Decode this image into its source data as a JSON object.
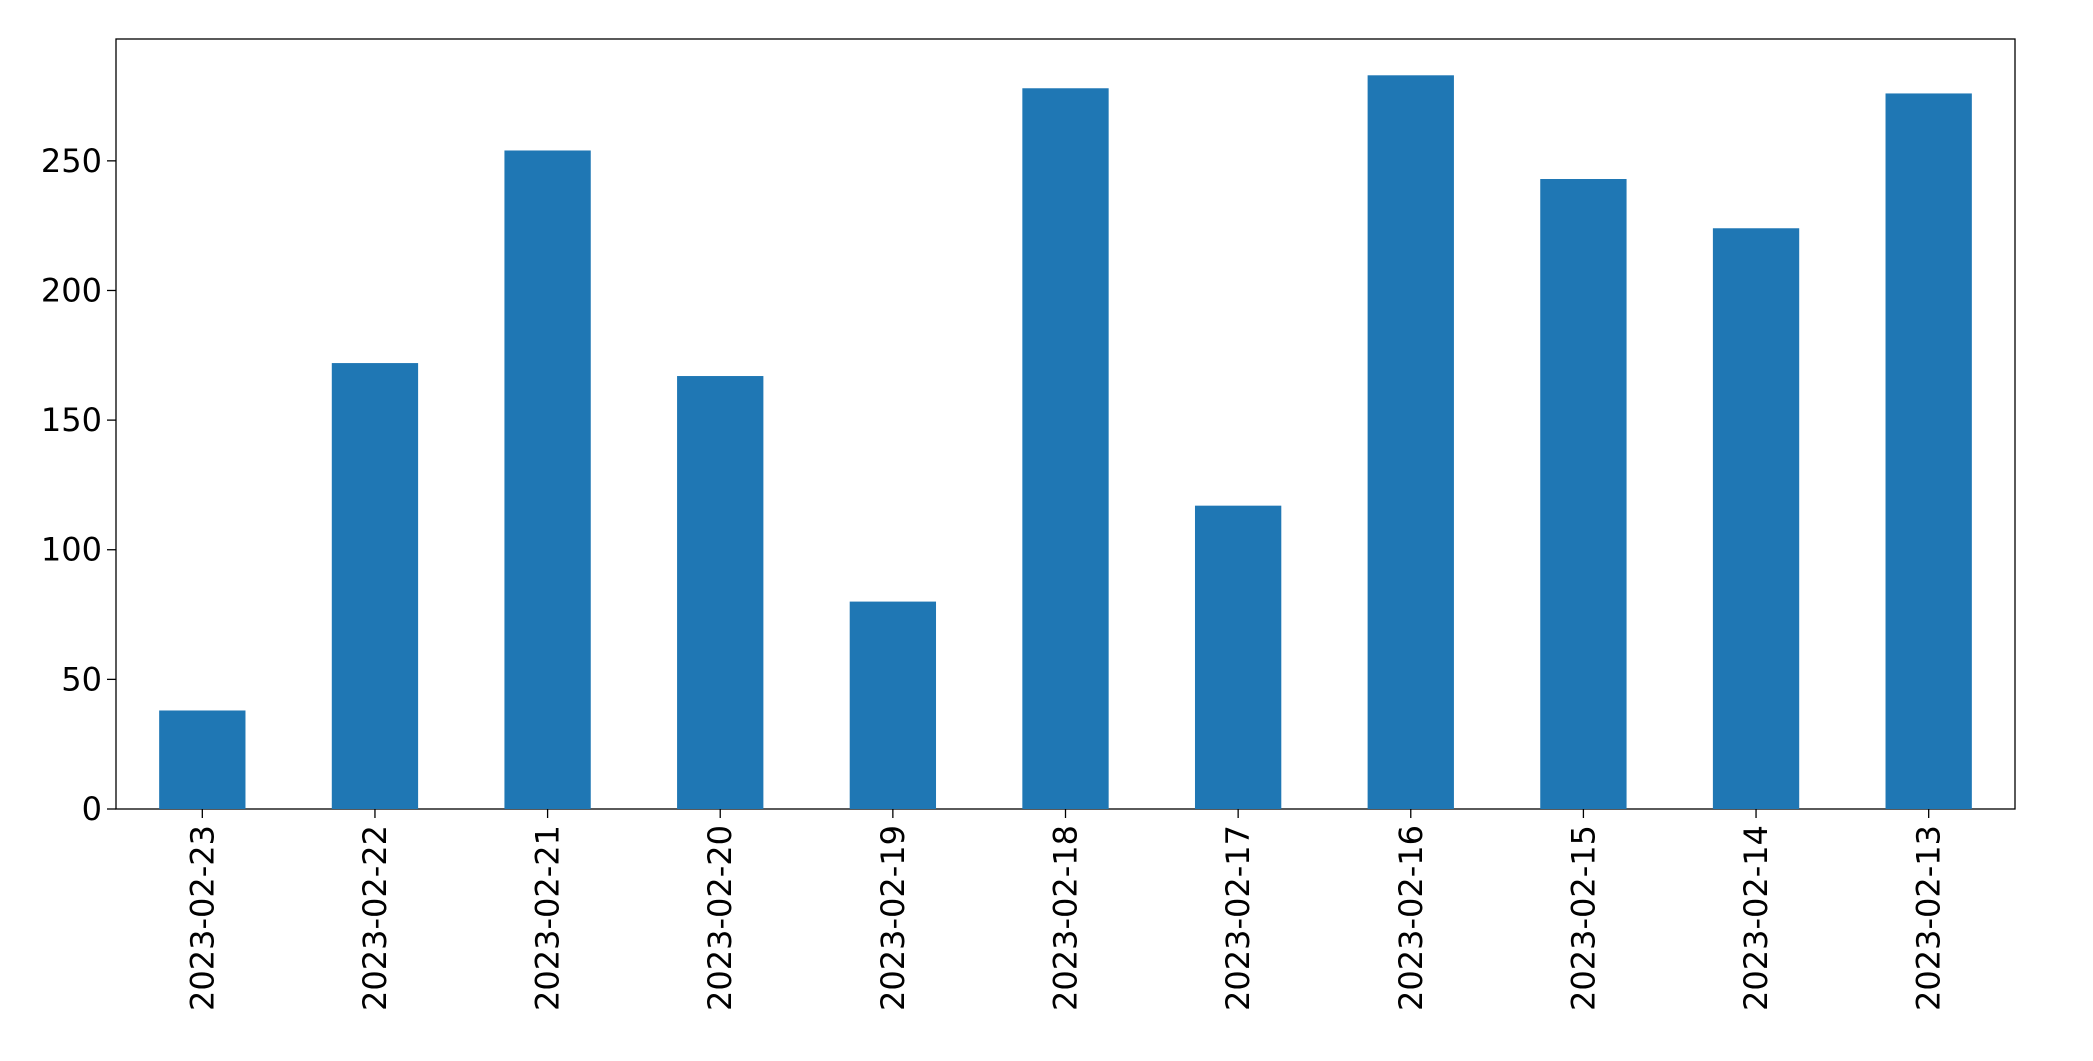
{
  "chart_data": {
    "type": "bar",
    "categories": [
      "2023-02-23",
      "2023-02-22",
      "2023-02-21",
      "2023-02-20",
      "2023-02-19",
      "2023-02-18",
      "2023-02-17",
      "2023-02-16",
      "2023-02-15",
      "2023-02-14",
      "2023-02-13"
    ],
    "values": [
      38,
      172,
      254,
      167,
      80,
      278,
      117,
      283,
      243,
      224,
      276
    ],
    "color": "#1f77b4",
    "ylim": [
      0,
      297
    ],
    "yticks": [
      0,
      50,
      100,
      150,
      200,
      250
    ],
    "grid": false
  }
}
